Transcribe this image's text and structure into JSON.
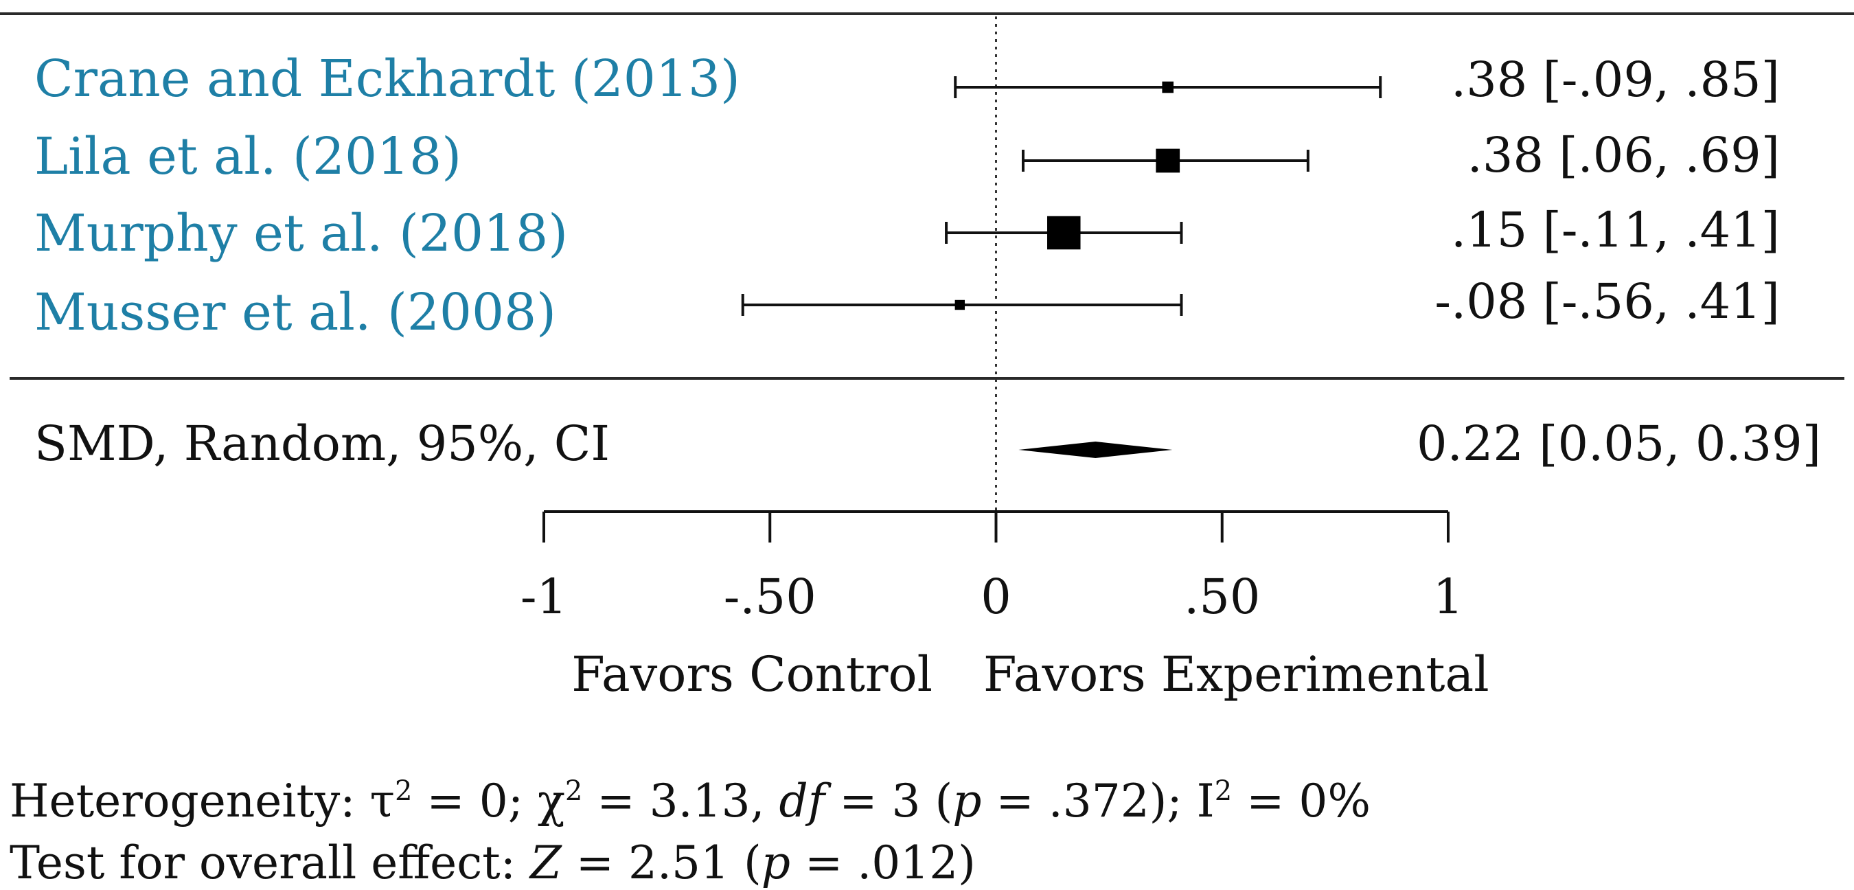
{
  "chart_data": {
    "type": "forest",
    "studies": [
      {
        "label": "Crane and Eckhardt (2013)",
        "estimate": 0.38,
        "ci": [
          -0.09,
          0.85
        ],
        "ci_text": ".38 [-.09, .85]",
        "weight": 0.12
      },
      {
        "label": "Lila et al. (2018)",
        "estimate": 0.38,
        "ci": [
          0.06,
          0.69
        ],
        "ci_text": ".38 [.06, .69]",
        "weight": 0.45
      },
      {
        "label": "Murphy et al. (2018)",
        "estimate": 0.15,
        "ci": [
          -0.11,
          0.41
        ],
        "ci_text": ".15 [-.11, .41]",
        "weight": 0.7
      },
      {
        "label": "Musser et al. (2008)",
        "estimate": -0.08,
        "ci": [
          -0.56,
          0.41
        ],
        "ci_text": "-.08 [-.56, .41]",
        "weight": 0.08
      }
    ],
    "pooled": {
      "label": "SMD, Random, 95%, CI",
      "estimate": 0.22,
      "ci": [
        0.05,
        0.39
      ],
      "ci_text": "0.22 [0.05, 0.39]"
    },
    "xlim": [
      -1,
      1
    ],
    "ticks": [
      {
        "value": -1,
        "label": "-1"
      },
      {
        "value": -0.5,
        "label": "-.50"
      },
      {
        "value": 0,
        "label": "0"
      },
      {
        "value": 0.5,
        "label": ".50"
      },
      {
        "value": 1,
        "label": "1"
      }
    ],
    "favors_left": "Favors Control",
    "favors_right": "Favors Experimental",
    "heterogeneity": {
      "prefix": "Heterogeneity: τ",
      "tau_exp": "2",
      "chi_part": " = 0; χ",
      "chi_exp": "2",
      "mid": " = 3.13, ",
      "df_italic": "df",
      "df_rest": " = 3 (",
      "p_italic": "p",
      "p_rest": " = .372); I",
      "i_exp": "2",
      "end": " = 0%"
    },
    "overall": {
      "prefix": "Test for overall effect: ",
      "z_italic": "Z",
      "z_rest": " = 2.51 (",
      "p_italic": "p",
      "p_rest": " = .012)"
    },
    "colors": {
      "study_label": "#1e7fa6",
      "marks": "#000000"
    }
  }
}
